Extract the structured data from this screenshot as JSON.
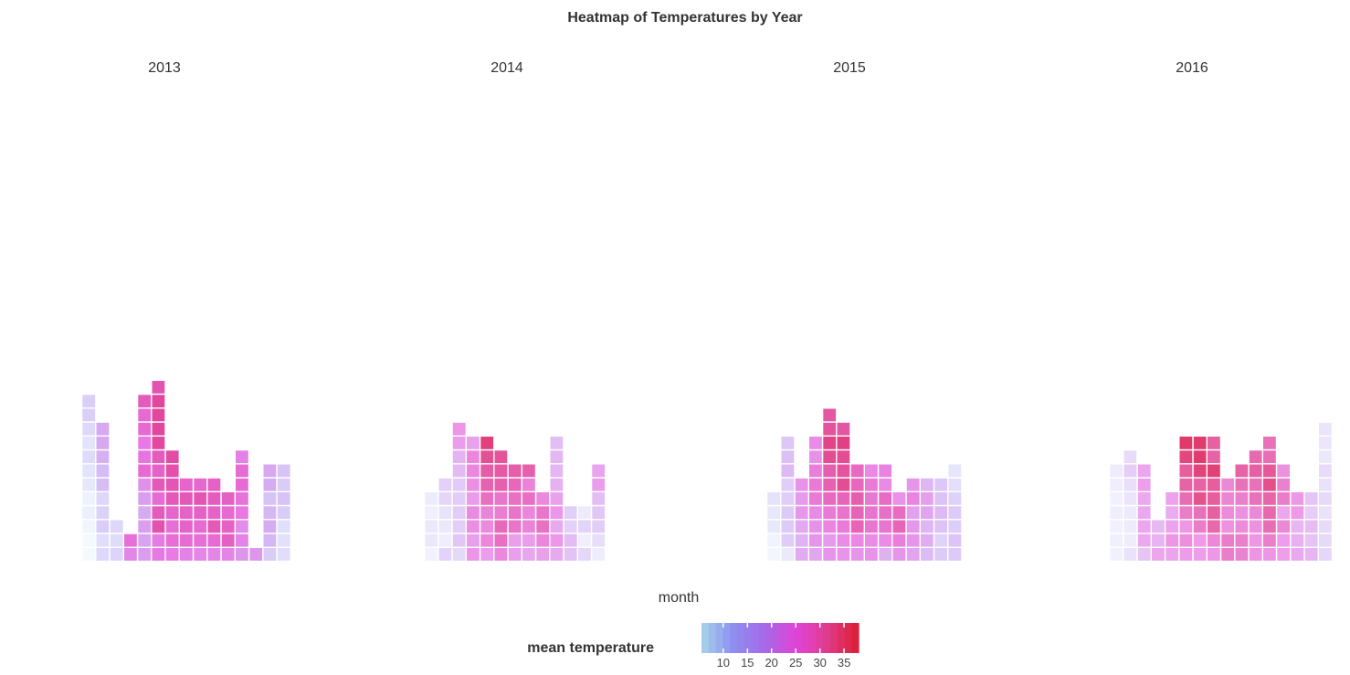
{
  "chart_data": {
    "type": "heatmap",
    "title": "Heatmap of Temperatures by Year",
    "xlabel": "month",
    "ylabel": "",
    "legend": {
      "title": "mean temperature",
      "ticks": [
        10,
        15,
        20,
        25,
        30,
        35
      ],
      "range": [
        5.5,
        38
      ],
      "position": "bottom"
    },
    "color_scale": [
      "#a7d5ea",
      "#8d8ef0",
      "#a56ae8",
      "#df44d9",
      "#e03c8c",
      "#dc1e32"
    ],
    "panels": [
      {
        "year": "2013",
        "columns": [
          [
            5.8,
            6.2,
            7.7,
            9.1,
            8.8,
            11.2,
            11.6,
            13.4,
            11.8,
            13.7,
            15.4,
            15.4
          ],
          [
            13.9,
            12.9,
            15.7,
            14.9,
            14.0,
            18.0,
            18.1,
            19.6,
            20.4,
            20.5
          ],
          [
            14.3,
            13.0,
            14.1
          ],
          [
            23.8,
            26.1
          ],
          [
            21.6,
            20.9,
            21.6,
            20.1,
            21.6,
            22.8,
            26.7,
            25.6,
            25.1,
            26.7,
            26.7,
            28.5
          ],
          [
            25.0,
            24.8,
            29.4,
            28.4,
            26.4,
            28.6,
            27.5,
            28.5,
            30.3,
            30.4,
            30.4,
            30.5,
            29.2
          ],
          [
            24.9,
            26.3,
            26.2,
            27.3,
            28.7,
            28.8,
            29.6,
            30.1
          ],
          [
            24.2,
            26.5,
            27.4,
            27.4,
            28.6,
            27.3
          ],
          [
            23.9,
            26.3,
            26.7,
            27.6,
            29.0,
            26.9
          ],
          [
            23.8,
            26.5,
            28.7,
            27.5,
            28.1,
            27.6
          ],
          [
            24.0,
            27.8,
            27.6,
            26.7,
            27.8
          ],
          [
            22.2,
            24.1,
            23.1,
            25.2,
            25.9,
            26.4,
            26.5,
            24.2
          ],
          [
            22.3
          ],
          [
            15.8,
            18.8,
            20.2,
            18.7,
            17.2,
            20.2,
            20.3
          ],
          [
            12.9,
            12.2,
            12.5,
            16.0,
            17.2,
            15.9,
            17.0
          ]
        ]
      },
      {
        "year": "2014",
        "columns": [
          [
            11.2,
            14.5,
            14.1,
            12.2,
            13.4
          ],
          [
            17.8,
            12.8,
            14.1,
            15.5,
            17.6,
            18.2
          ],
          [
            17.0,
            19.6,
            18.4,
            18.8,
            18.8,
            19.0,
            21.2,
            22.0,
            24.2,
            24.9
          ],
          [
            24.8,
            23.8,
            25.6,
            26.0,
            24.4,
            25.4,
            26.2,
            26.3,
            23.7
          ],
          [
            24.2,
            26.5,
            26.0,
            26.7,
            28.8,
            30.2,
            30.8,
            31.8,
            33.0
          ],
          [
            26.3,
            28.8,
            29.4,
            27.4,
            27.9,
            30.3,
            30.9,
            31.6
          ],
          [
            23.8,
            23.8,
            28.1,
            28.1,
            28.7,
            29.5,
            30.6
          ],
          [
            23.2,
            24.2,
            26.7,
            26.5,
            28.8,
            26.8,
            30.4
          ],
          [
            23.8,
            26.5,
            28.7,
            27.9,
            26.1
          ],
          [
            22.8,
            24.6,
            22.8,
            24.7,
            23.7,
            22.2,
            21.6,
            21.4,
            20.7
          ],
          [
            20.0,
            20.8,
            18.2,
            18.4
          ],
          [
            17.2,
            12.6,
            17.9,
            13.9
          ],
          [
            12.9,
            16.0,
            18.8,
            19.6,
            20.7,
            24.1,
            23.4
          ]
        ]
      },
      {
        "year": "2015",
        "columns": [
          [
            8.1,
            9.4,
            12.2,
            12.2,
            13.7
          ],
          [
            11.6,
            17.2,
            17.6,
            17.4,
            17.1,
            17.1,
            19.9,
            19.2,
            18.1
          ],
          [
            21.6,
            20.6,
            21.7,
            23.6,
            23.5,
            24.2
          ],
          [
            22.2,
            23.8,
            24.1,
            24.9,
            26.7,
            26.7,
            26.3,
            24.1,
            24.8
          ],
          [
            23.8,
            23.4,
            25.5,
            26.7,
            28.6,
            29.6,
            29.9,
            31.8,
            32.3,
            31.1,
            30.8
          ],
          [
            23.8,
            24.6,
            26.6,
            27.5,
            29.1,
            31.8,
            31.1,
            31.7,
            32.6,
            30.7
          ],
          [
            23.8,
            25.3,
            29.3,
            29.4,
            29.9,
            28.8,
            28.6
          ],
          [
            24.2,
            24.8,
            27.3,
            27.4,
            27.0,
            26.8,
            25.3
          ],
          [
            20.9,
            24.6,
            27.2,
            28.0,
            28.4,
            24.9,
            25.8
          ],
          [
            23.9,
            26.3,
            29.2,
            28.5,
            24.2
          ],
          [
            22.4,
            23.8,
            23.6,
            22.6,
            25.7,
            24.0
          ],
          [
            19.5,
            21.2,
            20.3,
            22.3,
            23.0,
            20.2
          ],
          [
            17.4,
            16.3,
            18.7,
            19.9,
            18.7,
            18.2
          ],
          [
            17.8,
            18.5,
            17.2,
            17.4,
            16.5,
            13.9,
            12.8
          ]
        ]
      },
      {
        "year": "2016",
        "columns": [
          [
            11.9,
            12.4,
            12.8,
            13.0,
            12.0,
            13.4,
            13.9
          ],
          [
            16.0,
            13.7,
            14.1,
            14.6,
            15.5,
            16.7,
            19.4,
            17.3
          ],
          [
            20.7,
            23.9,
            24.1,
            23.7,
            23.9,
            24.7,
            24.0
          ],
          [
            24.0,
            22.7,
            21.9
          ],
          [
            24.2,
            25.8,
            24.3,
            23.6,
            24.4
          ],
          [
            25.1,
            26.5,
            25.5,
            28.7,
            30.2,
            31.2,
            31.7,
            33.4,
            34.5
          ],
          [
            24.8,
            25.2,
            28.6,
            29.7,
            32.5,
            31.2,
            33.7,
            34.2,
            34.3
          ],
          [
            25.6,
            27.2,
            30.8,
            31.5,
            31.7,
            31.7,
            33.8,
            31.3,
            31.4
          ],
          [
            28.6,
            28.5,
            26.2,
            27.0,
            27.6,
            27.3
          ],
          [
            27.8,
            28.3,
            26.9,
            26.3,
            28.3,
            29.7,
            31.2
          ],
          [
            26.1,
            25.7,
            26.3,
            27.3,
            29.8,
            29.8,
            31.4,
            30.6
          ],
          [
            25.8,
            28.4,
            30.2,
            30.9,
            31.1,
            32.8,
            32.1,
            30.1,
            29.7
          ],
          [
            24.9,
            25.0,
            27.3,
            24.0,
            28.5,
            28.1,
            26.3
          ],
          [
            23.8,
            22.9,
            22.2,
            25.3,
            25.6
          ],
          [
            22.4,
            20.8,
            21.7,
            19.5,
            20.5
          ],
          [
            18.4,
            17.6,
            17.2,
            16.5,
            17.7,
            16.1,
            17.3,
            15.1,
            15.4,
            15.6
          ]
        ]
      }
    ]
  }
}
